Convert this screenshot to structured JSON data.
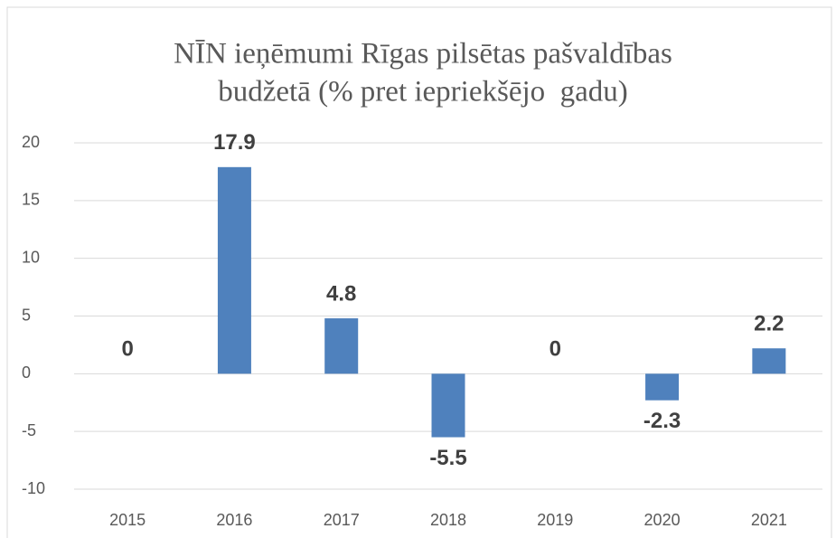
{
  "chart_data": {
    "type": "bar",
    "title": [
      "NĪN ieņēmumi Rīgas pilsētas pašvaldības",
      "budžetā (% pret iepriekšējo  gadu)"
    ],
    "categories": [
      "2015",
      "2016",
      "2017",
      "2018",
      "2019",
      "2020",
      "2021"
    ],
    "values": [
      0,
      17.9,
      4.8,
      -5.5,
      0,
      -2.3,
      2.2
    ],
    "color": "#4f81bd",
    "ylim": [
      -10,
      20
    ],
    "yticks": [
      -10,
      -5,
      0,
      5,
      10,
      15,
      20
    ],
    "grid": true
  }
}
